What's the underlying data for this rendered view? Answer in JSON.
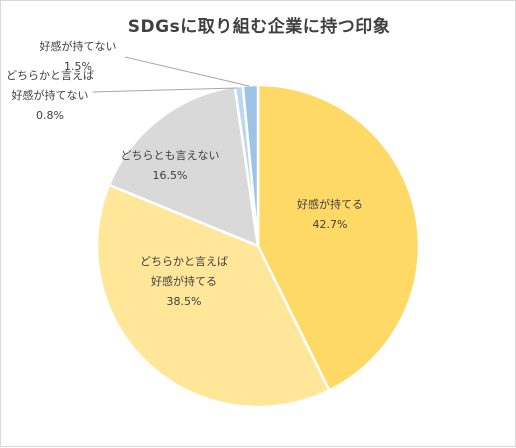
{
  "chart_data": {
    "type": "pie",
    "title": "SDGsに取り組む企業に持つ印象",
    "slices": [
      {
        "label_lines": [
          "好感が持てる"
        ],
        "value": 42.7,
        "value_label": "42.7%",
        "color": "#FFD966"
      },
      {
        "label_lines": [
          "どちらかと言えば",
          "好感が持てる"
        ],
        "value": 38.5,
        "value_label": "38.5%",
        "color": "#FFE699"
      },
      {
        "label_lines": [
          "どちらとも言えない"
        ],
        "value": 16.5,
        "value_label": "16.5%",
        "color": "#D9D9D9"
      },
      {
        "label_lines": [
          "どちらかと言えば",
          "好感が持てない"
        ],
        "value": 0.8,
        "value_label": "0.8%",
        "color": "#BDD7EE"
      },
      {
        "label_lines": [
          "好感が持てない"
        ],
        "value": 1.5,
        "value_label": "1.5%",
        "color": "#9DC3E6"
      }
    ]
  }
}
